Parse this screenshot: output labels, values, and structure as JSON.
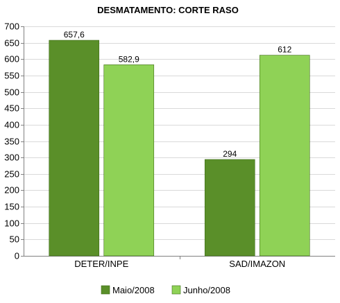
{
  "chart_data": {
    "type": "bar",
    "title": "DESMATAMENTO: CORTE RASO",
    "categories": [
      "DETER/INPE",
      "SAD/IMAZON"
    ],
    "series": [
      {
        "name": "Maio/2008",
        "values": [
          657.6,
          294
        ],
        "labels": [
          "657,6",
          "294"
        ],
        "color": "#5a8f29"
      },
      {
        "name": "Junho/2008",
        "values": [
          582.9,
          612
        ],
        "labels": [
          "582,9",
          "612"
        ],
        "color": "#8fd256"
      }
    ],
    "ylim": [
      0,
      700
    ],
    "yticks": [
      0,
      50,
      100,
      150,
      200,
      250,
      300,
      350,
      400,
      450,
      500,
      550,
      600,
      650,
      700
    ],
    "grid": true,
    "legend_position": "bottom"
  }
}
